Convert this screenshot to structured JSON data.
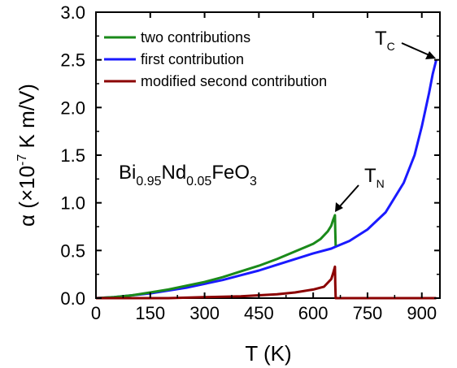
{
  "chart_data": {
    "type": "line",
    "title": "",
    "xlabel": "T (K)",
    "ylabel": {
      "prefix": "α (×10",
      "exponent": "-7",
      "suffix": " K m/V)"
    },
    "xlim": [
      0,
      950
    ],
    "ylim": [
      0.0,
      3.0
    ],
    "xticks": [
      "0",
      "150",
      "300",
      "450",
      "600",
      "750",
      "900"
    ],
    "xtick_values": [
      0,
      150,
      300,
      450,
      600,
      750,
      900
    ],
    "yticks": [
      "0.0",
      "0.5",
      "1.0",
      "1.5",
      "2.0",
      "2.5",
      "3.0"
    ],
    "ytick_values": [
      0.0,
      0.5,
      1.0,
      1.5,
      2.0,
      2.5,
      3.0
    ],
    "grid": false,
    "legend_position": "top-left",
    "series": [
      {
        "name": "two contributions",
        "color": "#1a8a1a",
        "x": [
          0,
          50,
          100,
          150,
          200,
          250,
          300,
          350,
          400,
          450,
          500,
          550,
          600,
          620,
          640,
          650,
          655,
          660,
          661,
          662
        ],
        "y": [
          0.0,
          0.01,
          0.03,
          0.06,
          0.09,
          0.13,
          0.17,
          0.22,
          0.28,
          0.34,
          0.41,
          0.49,
          0.57,
          0.62,
          0.7,
          0.76,
          0.82,
          0.87,
          0.7,
          0.55
        ]
      },
      {
        "name": "first contribution",
        "color": "#1a1aff",
        "x": [
          0,
          50,
          100,
          150,
          200,
          250,
          300,
          350,
          400,
          450,
          500,
          550,
          600,
          650,
          662,
          700,
          750,
          800,
          850,
          880,
          900,
          920,
          930,
          940
        ],
        "y": [
          0.0,
          0.01,
          0.03,
          0.05,
          0.08,
          0.11,
          0.15,
          0.19,
          0.24,
          0.29,
          0.35,
          0.41,
          0.47,
          0.52,
          0.54,
          0.6,
          0.72,
          0.9,
          1.21,
          1.5,
          1.8,
          2.15,
          2.35,
          2.5
        ]
      },
      {
        "name": "modified second contribution",
        "color": "#8b0000",
        "x": [
          0,
          100,
          200,
          300,
          400,
          450,
          500,
          550,
          600,
          630,
          650,
          655,
          660,
          661,
          662,
          680,
          750,
          850,
          940
        ],
        "y": [
          0.0,
          0.0,
          0.0,
          0.01,
          0.02,
          0.03,
          0.04,
          0.06,
          0.09,
          0.12,
          0.2,
          0.26,
          0.33,
          0.15,
          0.0,
          0.0,
          0.0,
          0.0,
          0.0
        ]
      }
    ],
    "annotations": {
      "compound": {
        "base1": "Bi",
        "sub1": "0.95",
        "base2": "Nd",
        "sub2": "0.05",
        "base3": "FeO",
        "sub3": "3"
      },
      "tn": {
        "base": "T",
        "sub": "N",
        "x": 662,
        "y": 0.87
      },
      "tc": {
        "base": "T",
        "sub": "C",
        "x": 940,
        "y": 2.5
      }
    }
  }
}
